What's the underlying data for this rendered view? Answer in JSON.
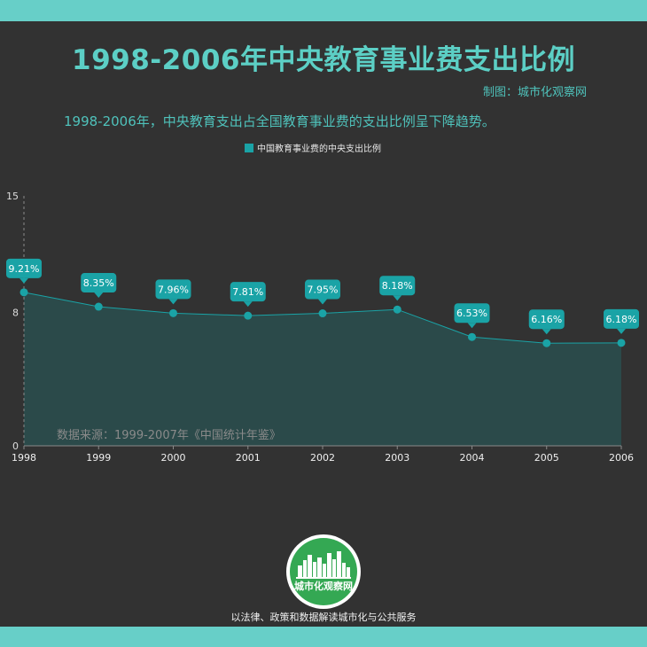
{
  "title": "1998-2006年中央教育事业费支出比例",
  "credit": "制图：城市化观察网",
  "subtitle": "1998-2006年，中央教育支出占全国教育事业费的支出比例呈下降趋势。",
  "source_note": "数据来源：1999-2007年《中国统计年鉴》",
  "logo_text": "城市化观察网",
  "slogan": "以法律、政策和数据解读城市化与公共服务",
  "colors": {
    "accent": "#67cfc8",
    "series": "#1aa3a6",
    "background": "#323232",
    "logo_green": "#34a853"
  },
  "chart_data": {
    "type": "area",
    "categories": [
      "1998",
      "1999",
      "2000",
      "2001",
      "2002",
      "2003",
      "2004",
      "2005",
      "2006"
    ],
    "series": [
      {
        "name": "中国教育事业费的中央支出比例",
        "values": [
          9.21,
          8.35,
          7.96,
          7.81,
          7.95,
          8.18,
          6.53,
          6.16,
          6.18
        ],
        "labels": [
          "9.21%",
          "8.35%",
          "7.96%",
          "7.81%",
          "7.95%",
          "8.18%",
          "6.53%",
          "6.16%",
          "6.18%"
        ]
      }
    ],
    "yticks": [
      "0",
      "8",
      "15"
    ],
    "ylim": [
      0,
      15
    ],
    "grid": false,
    "legend": "top-center"
  }
}
